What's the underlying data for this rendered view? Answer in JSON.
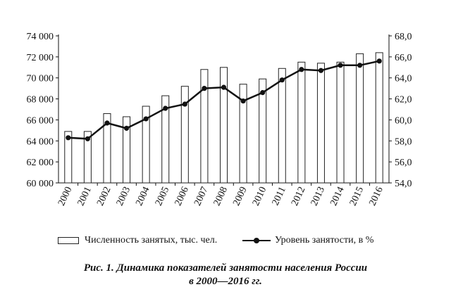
{
  "chart_data": {
    "type": "bar+line",
    "categories": [
      "2000",
      "2001",
      "2002",
      "2003",
      "2004",
      "2005",
      "2006",
      "2007",
      "2008",
      "2009",
      "2010",
      "2011",
      "2012",
      "2013",
      "2014",
      "2015",
      "2016"
    ],
    "series": [
      {
        "name": "Численность занятых, тыс. чел.",
        "type": "bar",
        "axis": "left",
        "values": [
          64900,
          64900,
          66600,
          66300,
          67300,
          68300,
          69200,
          70800,
          71000,
          69400,
          69900,
          70900,
          71500,
          71400,
          71500,
          72300,
          72400
        ]
      },
      {
        "name": "Уровень занятости, в %",
        "type": "line",
        "axis": "right",
        "values": [
          58.3,
          58.2,
          59.7,
          59.2,
          60.1,
          61.1,
          61.5,
          63.0,
          63.1,
          61.8,
          62.6,
          63.8,
          64.8,
          64.7,
          65.2,
          65.2,
          65.6
        ]
      }
    ],
    "y_left": {
      "min": 60000,
      "max": 74000,
      "ticks": [
        "60 000",
        "62 000",
        "64 000",
        "66 000",
        "68 000",
        "70 000",
        "72 000",
        "74 000"
      ]
    },
    "y_right": {
      "min": 54,
      "max": 68,
      "ticks": [
        "54,0",
        "56,0",
        "58,0",
        "60,0",
        "62,0",
        "64,0",
        "66,0",
        "68,0"
      ]
    },
    "grid": false,
    "legend_position": "bottom"
  },
  "caption": {
    "line1": "Рис. 1. Динамика показателей занятости населения России",
    "line2": "в 2000—2016 гг."
  }
}
